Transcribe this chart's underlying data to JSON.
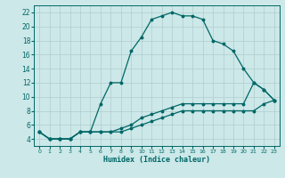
{
  "xlabel": "Humidex (Indice chaleur)",
  "bg_color": "#cce8e8",
  "grid_color": "#b0cccc",
  "line_color": "#006666",
  "xlim": [
    -0.5,
    23.5
  ],
  "ylim": [
    3,
    23
  ],
  "xticks": [
    0,
    1,
    2,
    3,
    4,
    5,
    6,
    7,
    8,
    9,
    10,
    11,
    12,
    13,
    14,
    15,
    16,
    17,
    18,
    19,
    20,
    21,
    22,
    23
  ],
  "yticks": [
    4,
    6,
    8,
    10,
    12,
    14,
    16,
    18,
    20,
    22
  ],
  "series1_y": [
    5,
    4,
    4,
    4,
    5,
    5,
    9,
    12,
    12,
    16.5,
    18.5,
    21,
    21.5,
    22,
    21.5,
    21.5,
    21,
    18,
    17.5,
    16.5,
    14,
    12,
    11,
    9.5
  ],
  "series2_y": [
    5,
    4,
    4,
    4,
    5,
    5,
    5,
    5,
    5.5,
    6,
    7,
    7.5,
    8,
    8.5,
    9,
    9,
    9,
    9,
    9,
    9,
    9,
    12,
    11,
    9.5
  ],
  "series3_y": [
    5,
    4,
    4,
    4,
    5,
    5,
    5,
    5,
    5,
    5.5,
    6,
    6.5,
    7,
    7.5,
    8,
    8,
    8,
    8,
    8,
    8,
    8,
    8,
    9,
    9.5
  ]
}
